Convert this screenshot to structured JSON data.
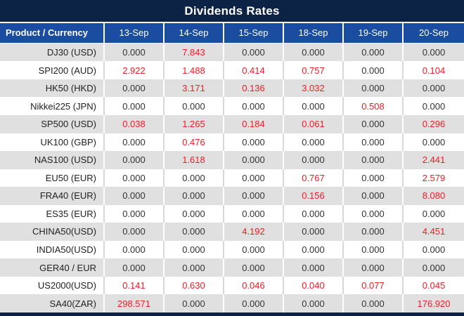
{
  "title": "Dividends Rates",
  "header": {
    "product_column_label": "Product / Currency"
  },
  "colors": {
    "title_bar_navy": "#0d2345",
    "header_blue": "#1a4c9f",
    "row_alt_gray": "#e0e0e0",
    "row_white": "#ffffff",
    "zero_value_text": "#333333",
    "nonzero_value_text": "#ee1c25"
  },
  "chart_data": {
    "type": "table",
    "title": "Dividends Rates",
    "row_header_label": "Product / Currency",
    "columns": [
      "13-Sep",
      "14-Sep",
      "15-Sep",
      "18-Sep",
      "19-Sep",
      "20-Sep"
    ],
    "value_decimals": 3,
    "highlight_rule": "non-zero values shown in red",
    "rows": [
      {
        "product": "DJ30 (USD)",
        "values": [
          0.0,
          7.843,
          0.0,
          0.0,
          0.0,
          0.0
        ]
      },
      {
        "product": "SPI200 (AUD)",
        "values": [
          2.922,
          1.488,
          0.414,
          0.757,
          0.0,
          0.104
        ]
      },
      {
        "product": "HK50 (HKD)",
        "values": [
          0.0,
          3.171,
          0.136,
          3.032,
          0.0,
          0.0
        ]
      },
      {
        "product": "Nikkei225 (JPN)",
        "values": [
          0.0,
          0.0,
          0.0,
          0.0,
          0.508,
          0.0
        ]
      },
      {
        "product": "SP500 (USD)",
        "values": [
          0.038,
          1.265,
          0.184,
          0.061,
          0.0,
          0.296
        ]
      },
      {
        "product": "UK100 (GBP)",
        "values": [
          0.0,
          0.476,
          0.0,
          0.0,
          0.0,
          0.0
        ]
      },
      {
        "product": "NAS100 (USD)",
        "values": [
          0.0,
          1.618,
          0.0,
          0.0,
          0.0,
          2.441
        ]
      },
      {
        "product": "EU50 (EUR)",
        "values": [
          0.0,
          0.0,
          0.0,
          0.767,
          0.0,
          2.579
        ]
      },
      {
        "product": "FRA40 (EUR)",
        "values": [
          0.0,
          0.0,
          0.0,
          0.156,
          0.0,
          8.08
        ]
      },
      {
        "product": "ES35 (EUR)",
        "values": [
          0.0,
          0.0,
          0.0,
          0.0,
          0.0,
          0.0
        ]
      },
      {
        "product": "CHINA50(USD)",
        "values": [
          0.0,
          0.0,
          4.192,
          0.0,
          0.0,
          4.451
        ]
      },
      {
        "product": "INDIA50(USD)",
        "values": [
          0.0,
          0.0,
          0.0,
          0.0,
          0.0,
          0.0
        ]
      },
      {
        "product": "GER40 / EUR",
        "values": [
          0.0,
          0.0,
          0.0,
          0.0,
          0.0,
          0.0
        ]
      },
      {
        "product": "US2000(USD)",
        "values": [
          0.141,
          0.63,
          0.046,
          0.04,
          0.077,
          0.045
        ]
      },
      {
        "product": "SA40(ZAR)",
        "values": [
          298.571,
          0.0,
          0.0,
          0.0,
          0.0,
          176.92
        ]
      }
    ]
  }
}
